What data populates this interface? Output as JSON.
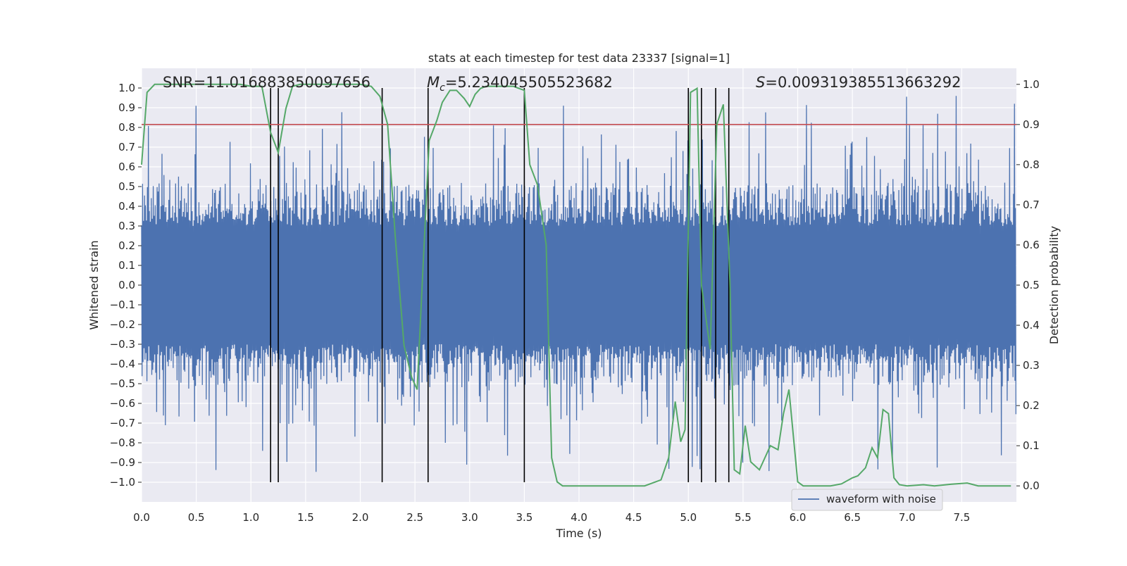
{
  "chart_data": {
    "type": "line",
    "title": "stats at each timestep for test data 23337 [signal=1]",
    "xlabel": "Time (s)",
    "ylabel": "Whitened strain",
    "y2label": "Detection probability",
    "xlim": [
      0.0,
      8.0
    ],
    "ylim": [
      -1.1,
      1.1
    ],
    "y2lim": [
      -0.04,
      1.04
    ],
    "xticks": [
      0.0,
      0.5,
      1.0,
      1.5,
      2.0,
      2.5,
      3.0,
      3.5,
      4.0,
      4.5,
      5.0,
      5.5,
      6.0,
      6.5,
      7.0,
      7.5
    ],
    "xtick_labels": [
      "0.0",
      "0.5",
      "1.0",
      "1.5",
      "2.0",
      "2.5",
      "3.0",
      "3.5",
      "4.0",
      "4.5",
      "5.0",
      "5.5",
      "6.0",
      "6.5",
      "7.0",
      "7.5"
    ],
    "yticks": [
      -1.0,
      -0.9,
      -0.8,
      -0.7,
      -0.6,
      -0.5,
      -0.4,
      -0.3,
      -0.2,
      -0.1,
      0.0,
      0.1,
      0.2,
      0.3,
      0.4,
      0.5,
      0.6,
      0.7,
      0.8,
      0.9,
      1.0
    ],
    "ytick_labels": [
      "−1.0",
      "−0.9",
      "−0.8",
      "−0.7",
      "−0.6",
      "−0.5",
      "−0.4",
      "−0.3",
      "−0.2",
      "−0.1",
      "0.0",
      "0.1",
      "0.2",
      "0.3",
      "0.4",
      "0.5",
      "0.6",
      "0.7",
      "0.8",
      "0.9",
      "1.0"
    ],
    "y2ticks": [
      0.0,
      0.1,
      0.2,
      0.3,
      0.4,
      0.5,
      0.6,
      0.7,
      0.8,
      0.9,
      1.0
    ],
    "y2tick_labels": [
      "0.0",
      "0.1",
      "0.2",
      "0.3",
      "0.4",
      "0.5",
      "0.6",
      "0.7",
      "0.8",
      "0.9",
      "1.0"
    ],
    "annotations": {
      "snr": "SNR=11.016883850097656",
      "mc_symbol": "M",
      "mc_sub": "c",
      "mc_value": "=5.234045505523682",
      "s_symbol": "S",
      "s_value": "=0.009319385513663292"
    },
    "threshold": {
      "value": 0.9,
      "axis": "y2",
      "color": "#c44e52"
    },
    "vertical_lines": [
      1.18,
      1.25,
      2.2,
      2.62,
      3.5,
      5.0,
      5.12,
      5.25,
      5.37
    ],
    "waveform": {
      "name": "waveform with noise",
      "color": "#4c72b0",
      "samples": 1800,
      "seed": 23337,
      "core_amplitude": 0.4,
      "positive_peak_max": 0.96,
      "negative_peak_min": -1.0
    },
    "detection_probability": {
      "color": "#55a868",
      "x": [
        0.0,
        0.05,
        0.12,
        0.3,
        0.6,
        0.9,
        1.0,
        1.1,
        1.18,
        1.25,
        1.32,
        1.38,
        1.45,
        1.6,
        1.8,
        2.0,
        2.1,
        2.18,
        2.25,
        2.32,
        2.4,
        2.47,
        2.52,
        2.58,
        2.63,
        2.7,
        2.75,
        2.82,
        2.88,
        2.95,
        3.0,
        3.05,
        3.1,
        3.15,
        3.25,
        3.4,
        3.5,
        3.55,
        3.62,
        3.7,
        3.75,
        3.8,
        3.85,
        4.0,
        4.3,
        4.6,
        4.75,
        4.82,
        4.88,
        4.93,
        4.97,
        5.02,
        5.08,
        5.12,
        5.2,
        5.26,
        5.32,
        5.38,
        5.42,
        5.47,
        5.52,
        5.57,
        5.65,
        5.75,
        5.82,
        5.87,
        5.92,
        6.0,
        6.05,
        6.15,
        6.3,
        6.4,
        6.5,
        6.55,
        6.62,
        6.68,
        6.73,
        6.78,
        6.83,
        6.88,
        6.93,
        7.0,
        7.15,
        7.25,
        7.4,
        7.55,
        7.65,
        7.95
      ],
      "y": [
        0.8,
        0.98,
        1.0,
        1.0,
        1.0,
        1.0,
        0.995,
        0.995,
        0.88,
        0.83,
        0.94,
        0.995,
        1.0,
        1.0,
        1.0,
        1.0,
        0.995,
        0.97,
        0.9,
        0.62,
        0.35,
        0.27,
        0.24,
        0.58,
        0.86,
        0.91,
        0.955,
        0.985,
        0.985,
        0.965,
        0.945,
        0.975,
        0.99,
        0.995,
        0.995,
        0.995,
        0.985,
        0.8,
        0.75,
        0.6,
        0.07,
        0.01,
        0.0,
        0.0,
        0.0,
        0.0,
        0.015,
        0.07,
        0.21,
        0.11,
        0.14,
        0.98,
        0.99,
        0.5,
        0.34,
        0.9,
        0.95,
        0.51,
        0.04,
        0.03,
        0.15,
        0.06,
        0.04,
        0.1,
        0.09,
        0.18,
        0.24,
        0.01,
        0.0,
        0.0,
        0.0,
        0.005,
        0.02,
        0.025,
        0.045,
        0.095,
        0.07,
        0.19,
        0.18,
        0.02,
        0.003,
        0.0,
        0.003,
        0.0,
        0.004,
        0.007,
        0.0,
        0.0
      ]
    }
  }
}
